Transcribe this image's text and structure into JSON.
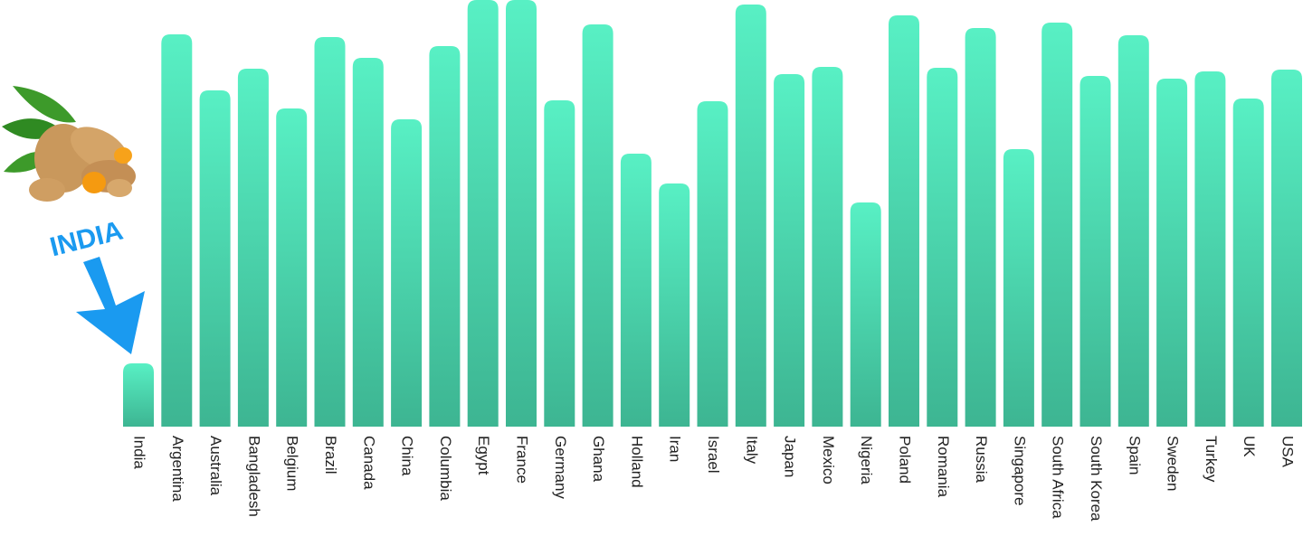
{
  "chart_data": {
    "type": "bar",
    "annotation": "INDIA",
    "categories": [
      "India",
      "Argentina",
      "Australia",
      "Bangladesh",
      "Belgium",
      "Brazil",
      "Canada",
      "China",
      "Columbia",
      "Egypt",
      "France",
      "Germany",
      "Ghana",
      "Holland",
      "Iran",
      "Israel",
      "Italy",
      "Japan",
      "Mexico",
      "Nigeria",
      "Poland",
      "Romania",
      "Russia",
      "Singapore",
      "South Africa",
      "South Korea",
      "Spain",
      "Sweden",
      "Turkey",
      "UK",
      "USA"
    ],
    "values": [
      70,
      434,
      372,
      396,
      352,
      431,
      408,
      340,
      421,
      472,
      472,
      361,
      445,
      302,
      269,
      360,
      467,
      390,
      398,
      248,
      455,
      397,
      441,
      307,
      447,
      388,
      433,
      385,
      393,
      363,
      395
    ],
    "color": "#4fdcb3",
    "annotation_color": "#1a9af0"
  }
}
